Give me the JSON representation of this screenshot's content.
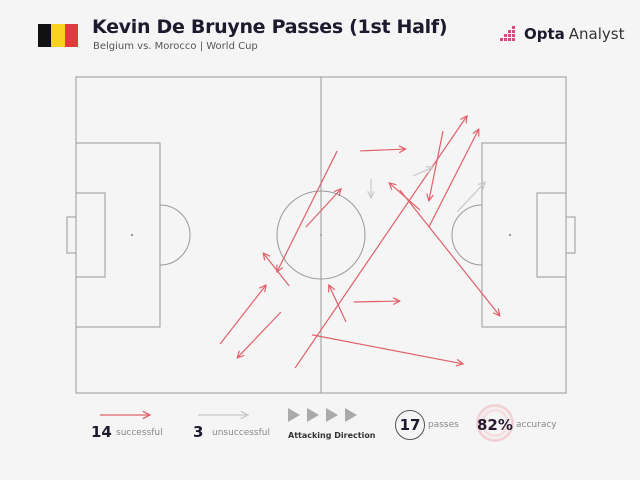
{
  "header": {
    "title": "Kevin De Bruyne Passes (1st Half)",
    "subtitle": "Belgium vs. Morocco | World Cup",
    "flag_colors": [
      "#111111",
      "#f7d21f",
      "#e23a3f"
    ],
    "logo_bold": "Opta",
    "logo_text": "Analyst"
  },
  "legend": {
    "successful_count": "14",
    "successful_label": "successful",
    "unsuccessful_count": "3",
    "unsuccessful_label": "unsuccessful",
    "direction_label": "Attacking Direction",
    "passes_count": "17",
    "passes_label": "passes",
    "accuracy_value": "82%",
    "accuracy_label": "accuracy"
  },
  "colors": {
    "successful": "#e0606a",
    "unsuccessful": "#c8c8c8",
    "pitch_lines": "#999999"
  },
  "chart_data": {
    "type": "pass-map",
    "pitch_scale": [
      0,
      100
    ],
    "attacking_direction": "left-to-right",
    "passes": [
      {
        "from": [
          53.3,
          23.4
        ],
        "to": [
          41.0,
          61.7
        ],
        "outcome": "successful"
      },
      {
        "from": [
          46.9,
          47.5
        ],
        "to": [
          54.1,
          35.4
        ],
        "outcome": "successful"
      },
      {
        "from": [
          43.5,
          66.1
        ],
        "to": [
          38.2,
          55.7
        ],
        "outcome": "successful"
      },
      {
        "from": [
          29.4,
          84.5
        ],
        "to": [
          38.8,
          65.8
        ],
        "outcome": "successful"
      },
      {
        "from": [
          41.8,
          74.4
        ],
        "to": [
          32.9,
          88.9
        ],
        "outcome": "successful"
      },
      {
        "from": [
          58.0,
          23.4
        ],
        "to": [
          67.3,
          22.8
        ],
        "outcome": "successful"
      },
      {
        "from": [
          55.1,
          77.5
        ],
        "to": [
          51.6,
          65.8
        ],
        "outcome": "successful"
      },
      {
        "from": [
          56.7,
          71.2
        ],
        "to": [
          66.1,
          70.9
        ],
        "outcome": "successful"
      },
      {
        "from": [
          44.7,
          92.1
        ],
        "to": [
          79.8,
          12.3
        ],
        "outcome": "successful"
      },
      {
        "from": [
          48.2,
          81.6
        ],
        "to": [
          79.0,
          90.8
        ],
        "outcome": "successful"
      },
      {
        "from": [
          74.9,
          17.1
        ],
        "to": [
          72.0,
          39.2
        ],
        "outcome": "successful"
      },
      {
        "from": [
          72.0,
          47.5
        ],
        "to": [
          82.2,
          16.5
        ],
        "outcome": "successful"
      },
      {
        "from": [
          70.2,
          42.1
        ],
        "to": [
          63.9,
          33.5
        ],
        "outcome": "successful"
      },
      {
        "from": [
          66.1,
          35.8
        ],
        "to": [
          86.5,
          75.6
        ],
        "outcome": "successful"
      },
      {
        "from": [
          60.2,
          32.3
        ],
        "to": [
          60.2,
          38.3
        ],
        "outcome": "unsuccessful"
      },
      {
        "from": [
          68.8,
          31.3
        ],
        "to": [
          72.9,
          28.5
        ],
        "outcome": "unsuccessful"
      },
      {
        "from": [
          77.8,
          42.7
        ],
        "to": [
          83.5,
          33.2
        ],
        "outcome": "unsuccessful"
      }
    ]
  }
}
